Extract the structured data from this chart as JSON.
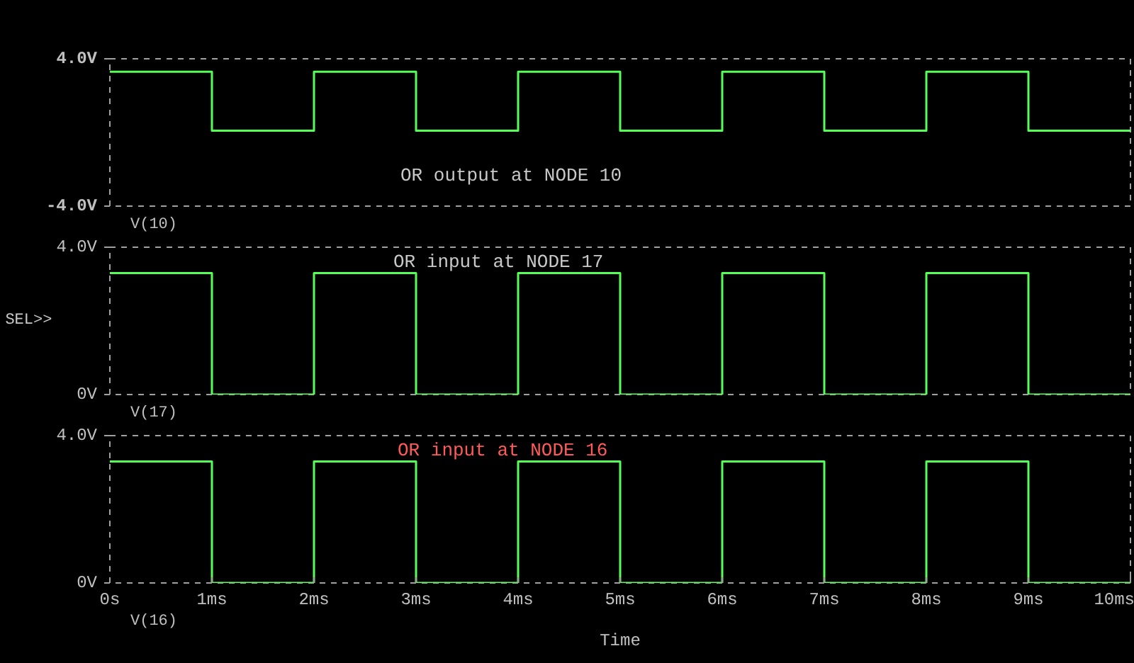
{
  "chart_data": [
    {
      "type": "step",
      "x": [
        0,
        1,
        2,
        3,
        4,
        5,
        6,
        7,
        8,
        9,
        10
      ],
      "xlim": [
        0,
        10
      ],
      "tick_labels": "y",
      "ylim": [
        -4,
        4
      ],
      "yticks": [
        {
          "value": -4,
          "label": "-4.0V"
        },
        {
          "value": 4,
          "label": "4.0V"
        }
      ],
      "legend": "bottom left",
      "annotations": [
        "OR output at NODE 10"
      ],
      "series": [
        {
          "name": "V(10)",
          "color": "#55ff55",
          "values": [
            3.3,
            0.1,
            3.3,
            0.1,
            3.3,
            0.1,
            3.3,
            0.1,
            3.3,
            0.1,
            0.1
          ]
        }
      ]
    },
    {
      "type": "step",
      "x": [
        0,
        1,
        2,
        3,
        4,
        5,
        6,
        7,
        8,
        9,
        10
      ],
      "xlim": [
        0,
        10
      ],
      "tick_labels": "y",
      "ylim": [
        0,
        4
      ],
      "yticks": [
        {
          "value": 0,
          "label": "0V"
        },
        {
          "value": 4,
          "label": "4.0V"
        }
      ],
      "legend": "bottom left",
      "annotations": [
        "OR input at NODE 17",
        "SEL>>"
      ],
      "series": [
        {
          "name": "V(17)",
          "color": "#55ff55",
          "values": [
            3.3,
            0,
            3.3,
            0,
            3.3,
            0,
            3.3,
            0,
            3.3,
            0,
            0
          ]
        }
      ]
    },
    {
      "type": "step",
      "x": [
        0,
        1,
        2,
        3,
        4,
        5,
        6,
        7,
        8,
        9,
        10
      ],
      "xlim": [
        0,
        10
      ],
      "xticks": [
        {
          "value": 0,
          "label": "0s"
        },
        {
          "value": 1,
          "label": "1ms"
        },
        {
          "value": 2,
          "label": "2ms"
        },
        {
          "value": 3,
          "label": "3ms"
        },
        {
          "value": 4,
          "label": "4ms"
        },
        {
          "value": 5,
          "label": "5ms"
        },
        {
          "value": 6,
          "label": "6ms"
        },
        {
          "value": 7,
          "label": "7ms"
        },
        {
          "value": 8,
          "label": "8ms"
        },
        {
          "value": 9,
          "label": "9ms"
        },
        {
          "value": 10,
          "label": "10ms"
        }
      ],
      "ylim": [
        0,
        4
      ],
      "yticks": [
        {
          "value": 0,
          "label": "0V"
        },
        {
          "value": 4,
          "label": "4.0V"
        }
      ],
      "legend": "bottom left",
      "xlabel": "Time",
      "annotations": [
        "OR input at NODE 16"
      ],
      "series": [
        {
          "name": "V(16)",
          "color": "#55ff55",
          "values": [
            3.3,
            0,
            3.3,
            0,
            3.3,
            0,
            3.3,
            0,
            3.3,
            0,
            0
          ]
        }
      ]
    }
  ]
}
